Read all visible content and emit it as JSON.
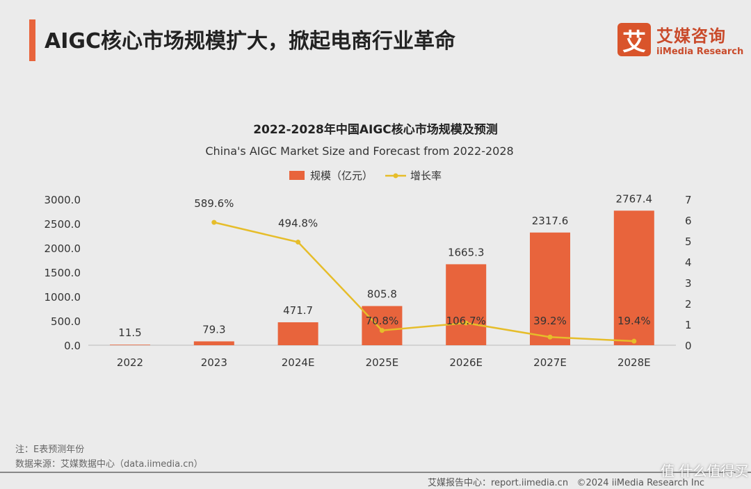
{
  "header": {
    "title": "AIGC核心市场规模扩大，掀起电商行业革命",
    "logo_mark": "艾",
    "logo_cn": "艾媒咨询",
    "logo_en": "iiMedia Research"
  },
  "chart_data": {
    "type": "bar+line",
    "title": "2022-2028年中国AIGC核心市场规模及预测",
    "subtitle": "China's AIGC Market Size and Forecast from 2022-2028",
    "categories": [
      "2022",
      "2023",
      "2024E",
      "2025E",
      "2026E",
      "2027E",
      "2028E"
    ],
    "series": [
      {
        "name": "规模（亿元）",
        "type": "bar",
        "axis": "left",
        "color": "#e8643c",
        "values": [
          11.5,
          79.3,
          471.7,
          805.8,
          1665.3,
          2317.6,
          2767.4
        ],
        "labels": [
          "11.5",
          "79.3",
          "471.7",
          "805.8",
          "1665.3",
          "2317.6",
          "2767.4"
        ]
      },
      {
        "name": "增长率",
        "type": "line",
        "axis": "right",
        "color": "#e6bd2a",
        "values": [
          null,
          5.896,
          4.948,
          0.708,
          1.067,
          0.392,
          0.194
        ],
        "labels": [
          "",
          "589.6%",
          "494.8%",
          "70.8%",
          "106.7%",
          "39.2%",
          "19.4%"
        ]
      }
    ],
    "left_axis": {
      "range": [
        0,
        3000
      ],
      "ticks": [
        "0.0",
        "500.0",
        "1000.0",
        "1500.0",
        "2000.0",
        "2500.0",
        "3000.0"
      ]
    },
    "right_axis": {
      "range": [
        0,
        7
      ],
      "ticks": [
        "0",
        "1",
        "2",
        "3",
        "4",
        "5",
        "6",
        "7"
      ]
    },
    "legend": "top",
    "grid": false
  },
  "notes": {
    "note": "注：E表预测年份",
    "source": "数据来源：艾媒数据中心（data.iimedia.cn）"
  },
  "footer": {
    "report": "艾媒报告中心：report.iimedia.cn",
    "copyright": "©2024  iiMedia Research  Inc"
  },
  "watermark": "值 什么值得买"
}
